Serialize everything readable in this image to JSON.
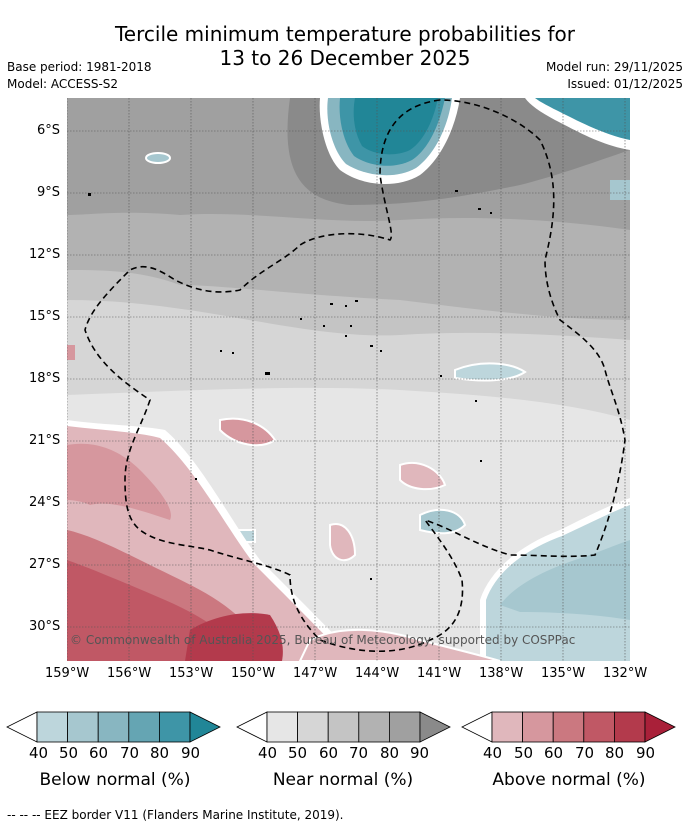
{
  "title": {
    "line1": "Tercile minimum temperature probabilities for",
    "line2": "13 to 26 December 2025"
  },
  "meta": {
    "base_period": "Base period: 1981-2018",
    "model": "Model: ACCESS-S2",
    "model_run": "Model run: 29/11/2025",
    "issued": "Issued: 01/12/2025"
  },
  "map": {
    "lat_ticks": [
      "6°S",
      "9°S",
      "12°S",
      "15°S",
      "18°S",
      "21°S",
      "24°S",
      "27°S",
      "30°S"
    ],
    "lon_ticks": [
      "159°W",
      "156°W",
      "153°W",
      "150°W",
      "147°W",
      "144°W",
      "141°W",
      "138°W",
      "135°W",
      "132°W"
    ],
    "copyright": "© Commonwealth of Australia 2025, Bureau of Meteorology, supported by COSPPac"
  },
  "legends": [
    {
      "title": "Below normal (%)",
      "ticks": [
        "40",
        "50",
        "60",
        "70",
        "80",
        "90"
      ],
      "colors": [
        "#bdd6dc",
        "#a6c7cf",
        "#88b6c1",
        "#65a5b3",
        "#3e95a7",
        "#218697"
      ]
    },
    {
      "title": "Near normal (%)",
      "ticks": [
        "40",
        "50",
        "60",
        "70",
        "80",
        "90"
      ],
      "colors": [
        "#e6e6e6",
        "#d6d6d6",
        "#c4c4c4",
        "#b2b2b2",
        "#a0a0a0",
        "#8a8a8a"
      ]
    },
    {
      "title": "Above normal (%)",
      "ticks": [
        "40",
        "50",
        "60",
        "70",
        "80",
        "90"
      ],
      "colors": [
        "#e0b7bc",
        "#d6979e",
        "#cb7880",
        "#c05865",
        "#b33a4c",
        "#a92039"
      ]
    }
  ],
  "footer": "-- -- -- EEZ border V11 (Flanders Marine Institute, 2019)."
}
